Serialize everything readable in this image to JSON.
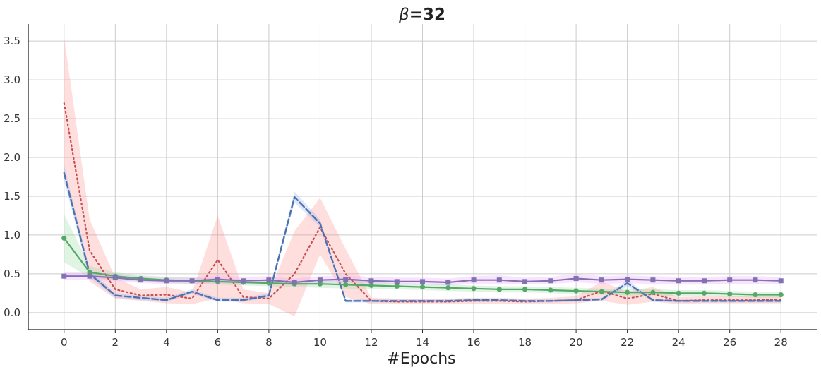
{
  "chart_data": {
    "type": "line",
    "title": "β=32",
    "title_symbol": "β",
    "title_rest": "=32",
    "xlabel": "#Epochs",
    "ylabel": "",
    "xlim": [
      -1.4,
      29.4
    ],
    "ylim": [
      -0.22,
      3.72
    ],
    "xticks": [
      0,
      2,
      4,
      6,
      8,
      10,
      12,
      14,
      16,
      18,
      20,
      22,
      24,
      26,
      28
    ],
    "yticks": [
      0.0,
      0.5,
      1.0,
      1.5,
      2.0,
      2.5,
      3.0,
      3.5
    ],
    "grid": true,
    "x": [
      0,
      1,
      2,
      3,
      4,
      5,
      6,
      7,
      8,
      9,
      10,
      11,
      12,
      13,
      14,
      15,
      16,
      17,
      18,
      19,
      20,
      21,
      22,
      23,
      24,
      25,
      26,
      27,
      28
    ],
    "series": [
      {
        "color": "#c44e52",
        "style": "dotted",
        "marker": "none",
        "band_color": "#ff8a8a",
        "values": [
          2.7,
          0.8,
          0.3,
          0.22,
          0.23,
          0.18,
          0.68,
          0.2,
          0.18,
          0.5,
          1.1,
          0.5,
          0.15,
          0.14,
          0.14,
          0.14,
          0.15,
          0.15,
          0.14,
          0.15,
          0.16,
          0.28,
          0.18,
          0.24,
          0.15,
          0.16,
          0.16,
          0.16,
          0.17
        ],
        "lower": [
          1.85,
          0.4,
          0.18,
          0.15,
          0.12,
          0.11,
          0.18,
          0.12,
          0.11,
          -0.05,
          0.75,
          0.2,
          0.11,
          0.11,
          0.11,
          0.11,
          0.11,
          0.11,
          0.11,
          0.11,
          0.12,
          0.15,
          0.1,
          0.14,
          0.11,
          0.12,
          0.12,
          0.12,
          0.12
        ],
        "upper": [
          3.55,
          1.2,
          0.45,
          0.3,
          0.33,
          0.26,
          1.25,
          0.3,
          0.25,
          1.05,
          1.48,
          0.82,
          0.19,
          0.18,
          0.18,
          0.18,
          0.19,
          0.19,
          0.18,
          0.19,
          0.21,
          0.4,
          0.27,
          0.33,
          0.2,
          0.21,
          0.21,
          0.21,
          0.22
        ]
      },
      {
        "color": "#4c72b0",
        "style": "dashed",
        "marker": "none",
        "band_color": "#8aa8f0",
        "values": [
          1.8,
          0.5,
          0.22,
          0.19,
          0.16,
          0.27,
          0.16,
          0.16,
          0.22,
          1.49,
          1.15,
          0.15,
          0.15,
          0.15,
          0.15,
          0.15,
          0.16,
          0.16,
          0.15,
          0.15,
          0.16,
          0.17,
          0.38,
          0.16,
          0.15,
          0.15,
          0.15,
          0.15,
          0.15
        ],
        "lower": [
          1.7,
          0.45,
          0.19,
          0.16,
          0.14,
          0.24,
          0.14,
          0.14,
          0.19,
          1.42,
          1.1,
          0.13,
          0.13,
          0.13,
          0.13,
          0.13,
          0.14,
          0.14,
          0.13,
          0.13,
          0.14,
          0.15,
          0.34,
          0.14,
          0.13,
          0.13,
          0.13,
          0.13,
          0.13
        ],
        "upper": [
          1.9,
          0.55,
          0.25,
          0.22,
          0.19,
          0.3,
          0.19,
          0.19,
          0.25,
          1.56,
          1.2,
          0.17,
          0.17,
          0.17,
          0.17,
          0.17,
          0.18,
          0.18,
          0.17,
          0.17,
          0.18,
          0.19,
          0.42,
          0.18,
          0.17,
          0.17,
          0.17,
          0.17,
          0.17
        ]
      },
      {
        "color": "#55a868",
        "style": "solid",
        "marker": "circle",
        "band_color": "#8fd69a",
        "values": [
          0.96,
          0.52,
          0.47,
          0.44,
          0.42,
          0.41,
          0.4,
          0.39,
          0.38,
          0.37,
          0.37,
          0.36,
          0.35,
          0.34,
          0.33,
          0.32,
          0.31,
          0.3,
          0.3,
          0.29,
          0.28,
          0.27,
          0.26,
          0.26,
          0.25,
          0.25,
          0.24,
          0.23,
          0.23
        ],
        "lower": [
          0.65,
          0.45,
          0.42,
          0.4,
          0.38,
          0.37,
          0.36,
          0.35,
          0.34,
          0.33,
          0.32,
          0.31,
          0.3,
          0.3,
          0.29,
          0.28,
          0.27,
          0.26,
          0.26,
          0.25,
          0.24,
          0.23,
          0.22,
          0.22,
          0.21,
          0.21,
          0.2,
          0.19,
          0.19
        ],
        "upper": [
          1.27,
          0.6,
          0.52,
          0.48,
          0.46,
          0.45,
          0.44,
          0.43,
          0.42,
          0.41,
          0.41,
          0.41,
          0.4,
          0.38,
          0.37,
          0.36,
          0.35,
          0.34,
          0.34,
          0.33,
          0.32,
          0.31,
          0.3,
          0.3,
          0.29,
          0.29,
          0.28,
          0.27,
          0.27
        ]
      },
      {
        "color": "#8172b2",
        "style": "solid",
        "marker": "square",
        "band_color": "#e89aff",
        "values": [
          0.47,
          0.47,
          0.45,
          0.42,
          0.41,
          0.41,
          0.43,
          0.41,
          0.42,
          0.39,
          0.42,
          0.43,
          0.41,
          0.4,
          0.4,
          0.39,
          0.42,
          0.42,
          0.4,
          0.41,
          0.44,
          0.42,
          0.43,
          0.42,
          0.41,
          0.41,
          0.42,
          0.42,
          0.41
        ],
        "lower": [
          0.42,
          0.42,
          0.41,
          0.38,
          0.37,
          0.37,
          0.38,
          0.37,
          0.38,
          0.35,
          0.38,
          0.39,
          0.37,
          0.36,
          0.36,
          0.35,
          0.37,
          0.37,
          0.36,
          0.37,
          0.39,
          0.37,
          0.38,
          0.37,
          0.36,
          0.36,
          0.37,
          0.37,
          0.36
        ],
        "upper": [
          0.52,
          0.52,
          0.5,
          0.47,
          0.46,
          0.46,
          0.48,
          0.46,
          0.47,
          0.44,
          0.47,
          0.48,
          0.46,
          0.45,
          0.45,
          0.44,
          0.47,
          0.48,
          0.45,
          0.46,
          0.5,
          0.47,
          0.48,
          0.47,
          0.46,
          0.46,
          0.47,
          0.47,
          0.46
        ]
      }
    ]
  }
}
